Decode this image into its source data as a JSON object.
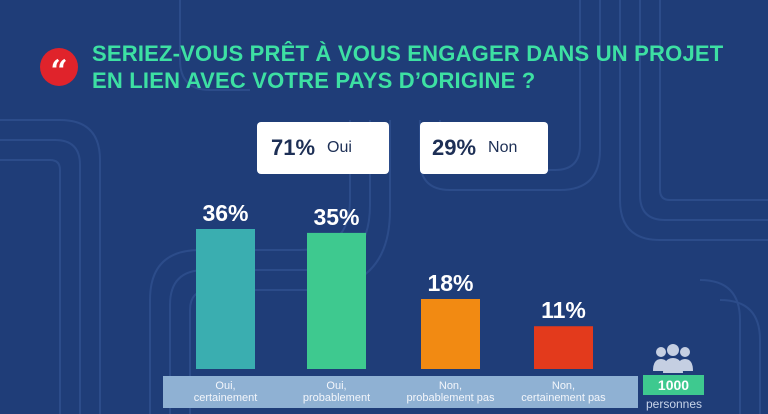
{
  "header": {
    "quote_icon": "quote-icon",
    "quote_glyph": "“",
    "title": "SERIEZ-VOUS PRÊT À VOUS ENGAGER DANS UN PROJET EN LIEN AVEC VOTRE PAYS D’ORIGINE ?"
  },
  "summary": [
    {
      "pct": "71%",
      "label": "Oui"
    },
    {
      "pct": "29%",
      "label": "Non"
    }
  ],
  "chart_data": {
    "type": "bar",
    "categories": [
      "Oui, certainement",
      "Oui, probablement",
      "Non, probablement pas",
      "Non, certainement pas"
    ],
    "category_lines": [
      [
        "Oui,",
        "certainement"
      ],
      [
        "Oui,",
        "probablement"
      ],
      [
        "Non,",
        "probablement pas"
      ],
      [
        "Non,",
        "certainement pas"
      ]
    ],
    "values": [
      36,
      35,
      18,
      11
    ],
    "value_labels": [
      "36%",
      "35%",
      "18%",
      "11%"
    ],
    "colors": [
      "#3aaeb0",
      "#3ec98f",
      "#f28a12",
      "#e33a1c"
    ],
    "unit": "%",
    "ylim": [
      0,
      40
    ],
    "grid": false,
    "legend": "none"
  },
  "sample": {
    "icon": "people-icon",
    "count": "1000",
    "unit": "personnes"
  },
  "colors": {
    "background": "#1f3d78",
    "title": "#3de0a3",
    "quote_badge": "#e0232b",
    "category_band": "#8fb1d3",
    "sample_box": "#3ec98f"
  }
}
